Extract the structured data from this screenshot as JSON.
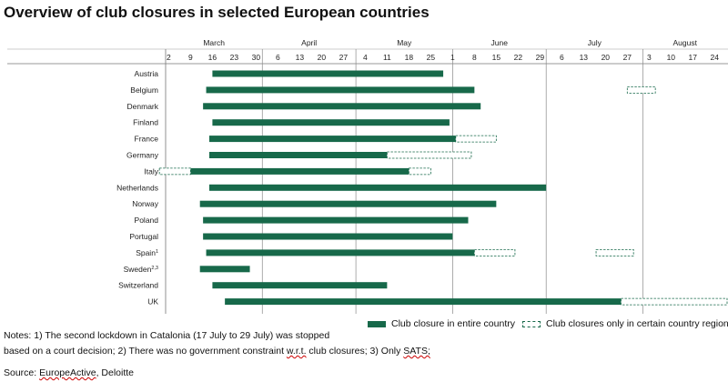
{
  "title": "Overview of club closures in selected European countries",
  "notes": {
    "line1": "Notes: 1) The second lockdown in Catalonia (17 July to 29 July) was stopped",
    "line2_before": "based on a court decision; 2) There was no government constraint ",
    "line2_wrt": "w.r.t.",
    "line2_middle": " club closures; 3) Only ",
    "line2_sats": "SATS;"
  },
  "source": {
    "prefix": "Source: ",
    "europeactive": "EuropeActive",
    "rest": ", Deloitte"
  },
  "legend": {
    "full_label": "Club closure in entire country",
    "partial_label": "Club closures only in certain country regions"
  },
  "colors": {
    "full": "#17694a",
    "partial_border": "#17694a"
  },
  "chart_data": {
    "type": "gantt",
    "x_axis": {
      "months": [
        "March",
        "April",
        "May",
        "June",
        "July",
        "August"
      ],
      "week_ticks": [
        "2",
        "9",
        "16",
        "23",
        "30",
        "6",
        "13",
        "20",
        "27",
        "4",
        "11",
        "18",
        "25",
        "1",
        "8",
        "15",
        "22",
        "29",
        "6",
        "13",
        "20",
        "27",
        "3",
        "10",
        "17",
        "24"
      ],
      "range": [
        "2020-03-01",
        "2020-08-28"
      ]
    },
    "countries": [
      {
        "label": "Austria",
        "full": [
          [
            "2020-03-16",
            "2020-05-29"
          ]
        ],
        "partial": []
      },
      {
        "label": "Belgium",
        "full": [
          [
            "2020-03-14",
            "2020-06-08"
          ]
        ],
        "partial": [
          [
            "2020-07-27",
            "2020-08-05"
          ]
        ]
      },
      {
        "label": "Denmark",
        "full": [
          [
            "2020-03-13",
            "2020-06-10"
          ]
        ],
        "partial": []
      },
      {
        "label": "Finland",
        "full": [
          [
            "2020-03-16",
            "2020-05-31"
          ]
        ],
        "partial": []
      },
      {
        "label": "France",
        "full": [
          [
            "2020-03-15",
            "2020-06-02"
          ]
        ],
        "partial": [
          [
            "2020-06-02",
            "2020-06-15"
          ]
        ]
      },
      {
        "label": "Germany",
        "full": [
          [
            "2020-03-15",
            "2020-05-11"
          ]
        ],
        "partial": [
          [
            "2020-05-11",
            "2020-06-07"
          ]
        ]
      },
      {
        "label": "Italy",
        "full": [
          [
            "2020-03-09",
            "2020-05-18"
          ]
        ],
        "partial": [
          [
            "2020-02-28",
            "2020-03-09"
          ],
          [
            "2020-05-18",
            "2020-05-25"
          ]
        ]
      },
      {
        "label": "Netherlands",
        "full": [
          [
            "2020-03-15",
            "2020-07-01"
          ]
        ],
        "partial": []
      },
      {
        "label": "Norway",
        "full": [
          [
            "2020-03-12",
            "2020-06-15"
          ]
        ],
        "partial": []
      },
      {
        "label": "Poland",
        "full": [
          [
            "2020-03-13",
            "2020-06-06"
          ]
        ],
        "partial": []
      },
      {
        "label": "Portugal",
        "full": [
          [
            "2020-03-13",
            "2020-06-01"
          ]
        ],
        "partial": []
      },
      {
        "label": "Spain",
        "superscript": "1",
        "full": [
          [
            "2020-03-14",
            "2020-06-08"
          ]
        ],
        "partial": [
          [
            "2020-06-08",
            "2020-06-21"
          ],
          [
            "2020-07-17",
            "2020-07-29"
          ]
        ]
      },
      {
        "label": "Sweden",
        "superscript": "2,3",
        "full": [
          [
            "2020-03-12",
            "2020-03-28"
          ]
        ],
        "partial": []
      },
      {
        "label": "Switzerland",
        "full": [
          [
            "2020-03-16",
            "2020-05-11"
          ]
        ],
        "partial": []
      },
      {
        "label": "UK",
        "full": [
          [
            "2020-03-20",
            "2020-07-25"
          ]
        ],
        "partial": [
          [
            "2020-07-25",
            "2020-08-28"
          ]
        ]
      }
    ]
  }
}
